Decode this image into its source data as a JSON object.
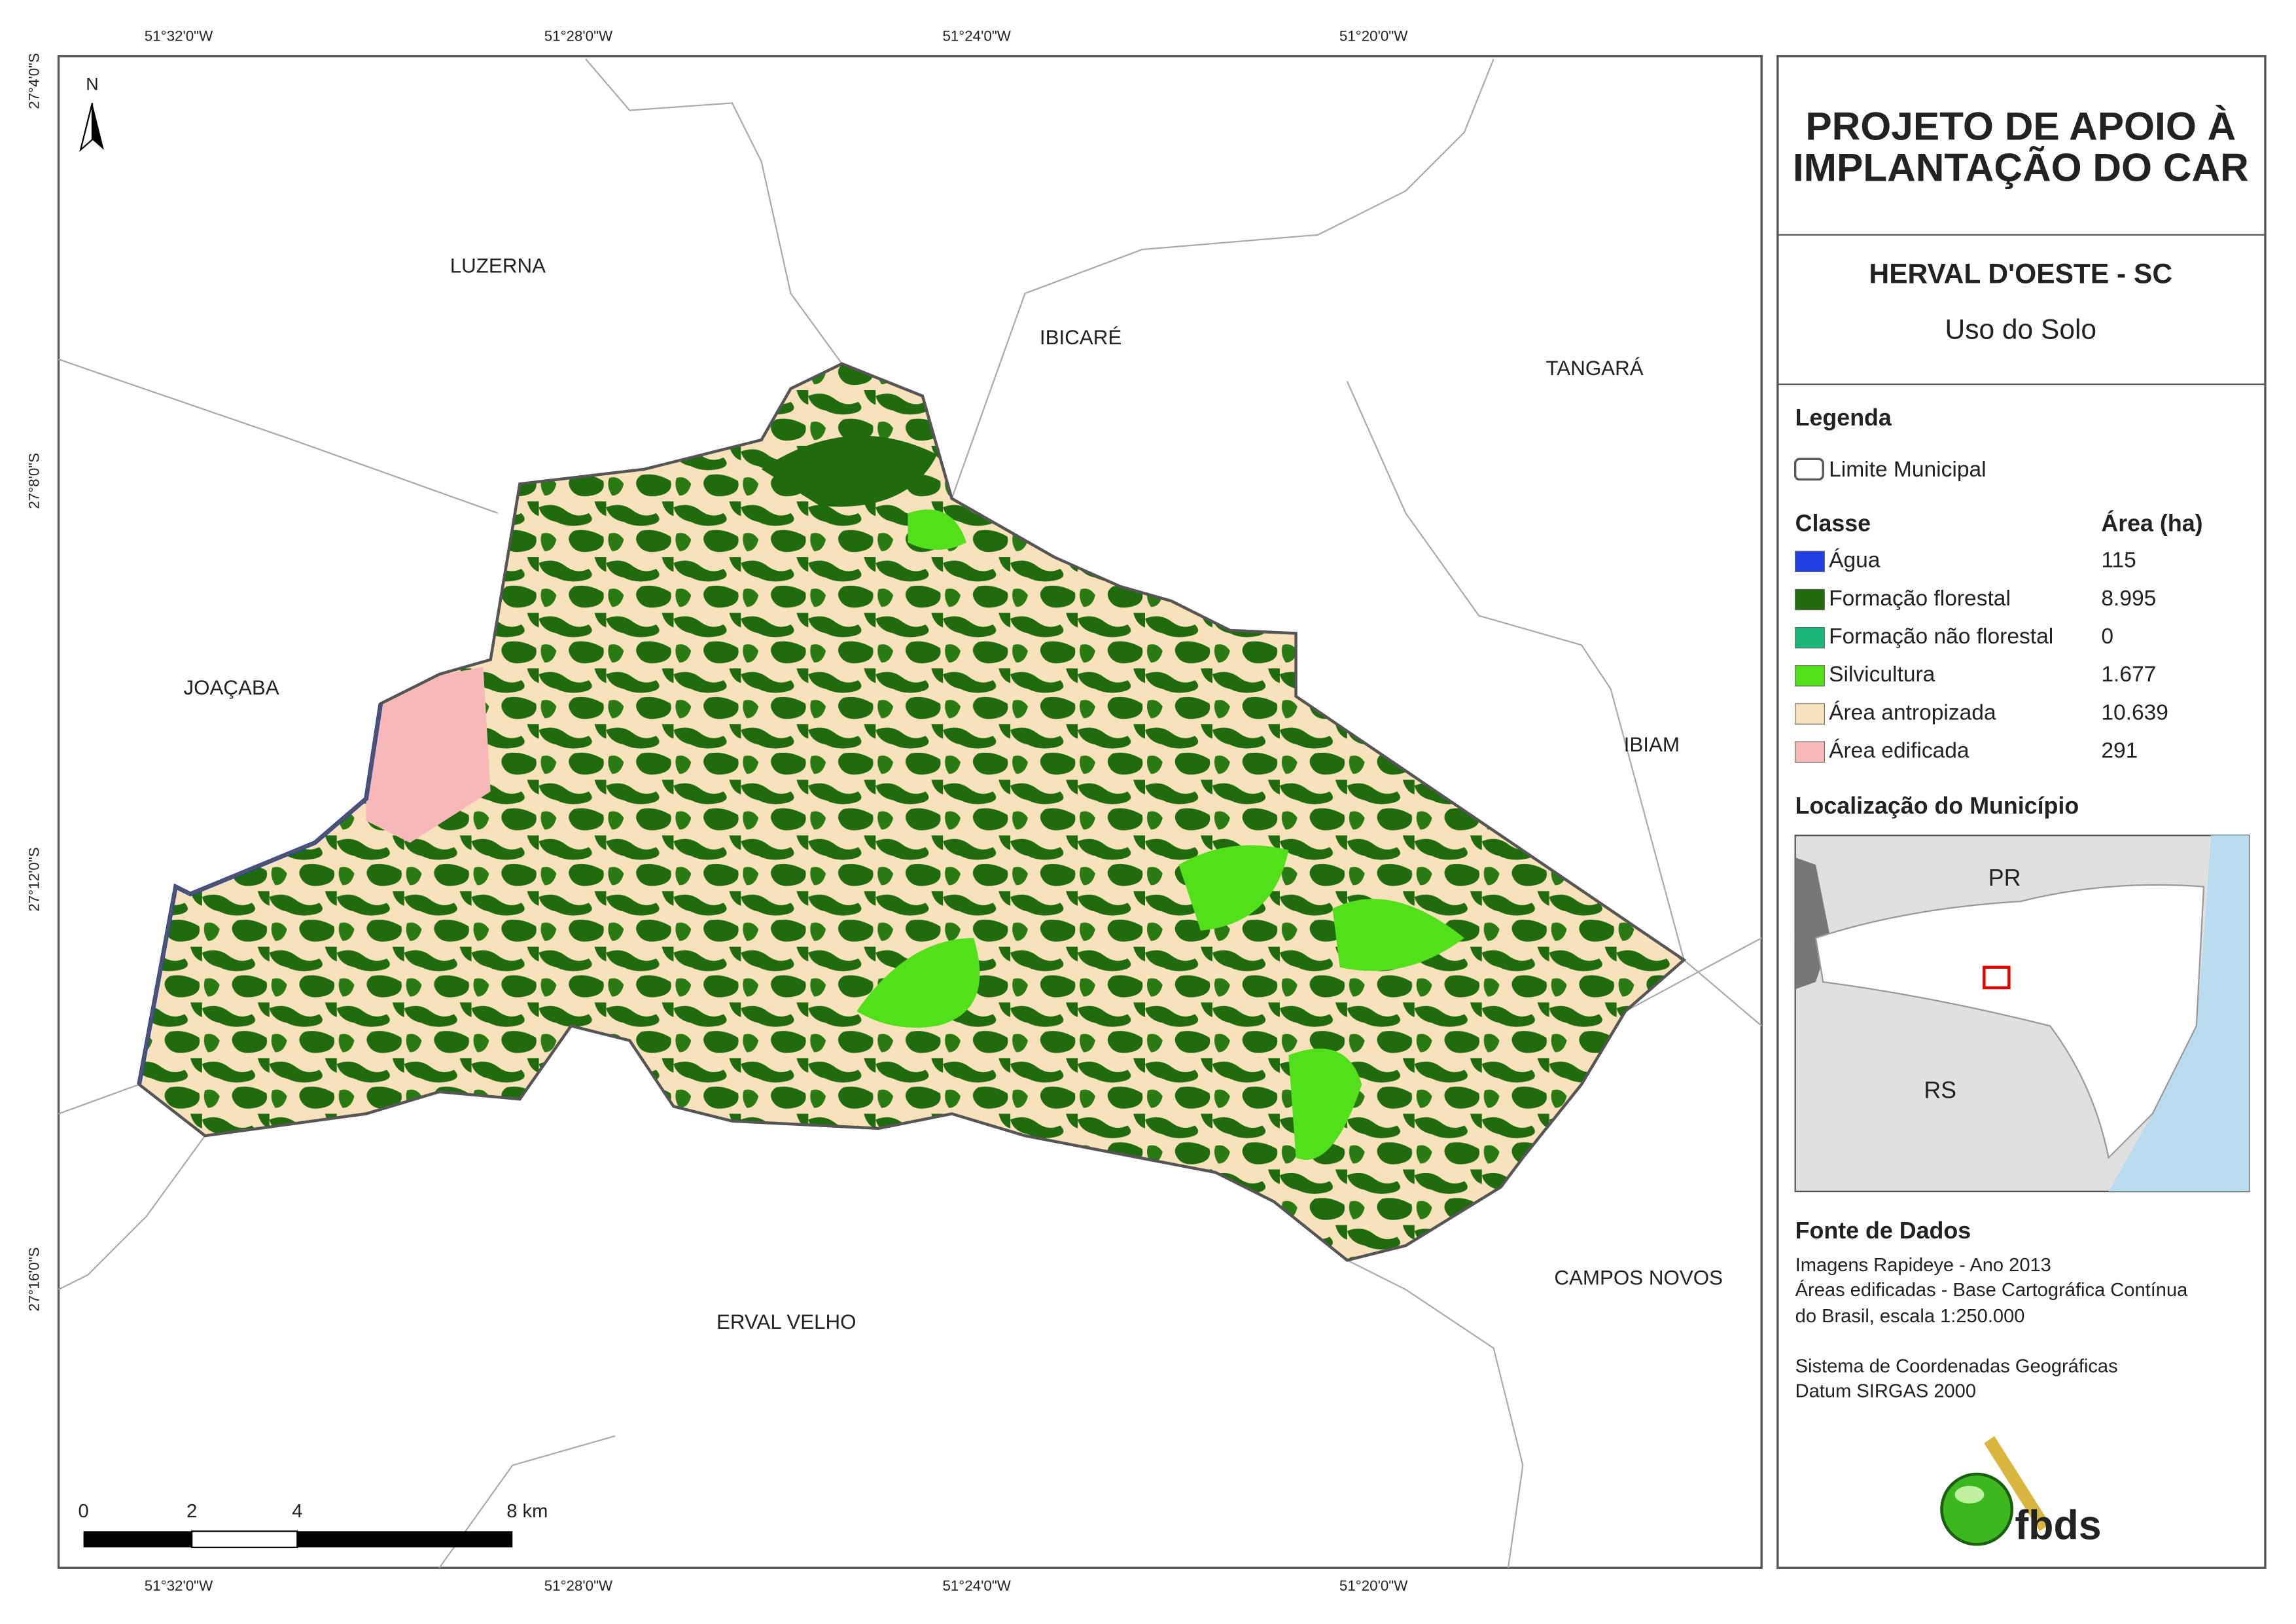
{
  "map": {
    "graticule": {
      "top": [
        "51°32'0\"W",
        "51°28'0\"W",
        "51°24'0\"W",
        "51°20'0\"W"
      ],
      "bottom": [
        "51°32'0\"W",
        "51°28'0\"W",
        "51°24'0\"W",
        "51°20'0\"W"
      ],
      "left": [
        "27°4'0\"S",
        "27°8'0\"S",
        "27°12'0\"S",
        "27°16'0\"S"
      ]
    },
    "north": "N",
    "places": [
      "LUZERNA",
      "IBICARÉ",
      "TANGARÁ",
      "JOAÇABA",
      "IBIAM",
      "CAMPOS NOVOS",
      "ERVAL VELHO"
    ],
    "scale_bar": [
      "0",
      "2",
      "4",
      "8 km"
    ]
  },
  "panel": {
    "title": [
      "PROJETO DE APOIO À",
      "IMPLANTAÇÃO DO CAR"
    ],
    "municipality": "HERVAL D'OESTE - SC",
    "subtitle": "Uso do Solo",
    "legend": {
      "title": "Legenda",
      "boundary": "Limite Municipal",
      "class_header": "Classe",
      "area_header": "Área (ha)",
      "classes": [
        {
          "name": "Água",
          "area": "115",
          "color": "#1f3fe0"
        },
        {
          "name": "Formação florestal",
          "area": "8.995",
          "color": "#1f6b0e"
        },
        {
          "name": "Formação não florestal",
          "area": "0",
          "color": "#19b87a"
        },
        {
          "name": "Silvicultura",
          "area": "1.677",
          "color": "#52e01a"
        },
        {
          "name": "Área antropizada",
          "area": "10.639",
          "color": "#f7e2bc"
        },
        {
          "name": "Área edificada",
          "area": "291",
          "color": "#f7b8b8"
        }
      ]
    },
    "location": {
      "title": "Localização do Município",
      "labels": [
        "PR",
        "RS"
      ]
    },
    "sources": {
      "title": "Fonte de Dados",
      "lines": [
        "Imagens Rapideye - Ano 2013",
        "Áreas edificadas - Base Cartográfica Contínua",
        "do Brasil, escala 1:250.000",
        "Sistema de Coordenadas Geográficas",
        "Datum SIRGAS 2000"
      ]
    },
    "logo": "fbds"
  }
}
